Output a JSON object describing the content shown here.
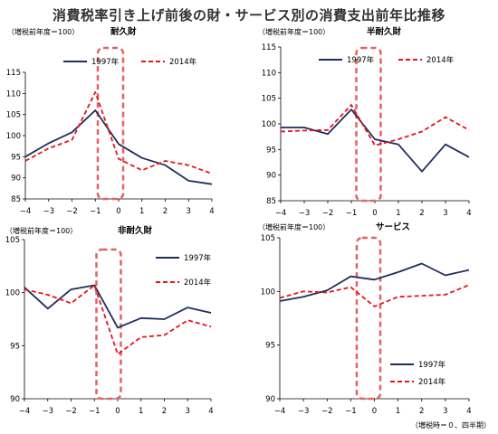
{
  "title": "消費税率引き上げ前後の財・サービス別の消費支出前年比推移",
  "footnote": "（増税時＝０、四半期）",
  "colors": {
    "s1997": "#1f2d5c",
    "s2014": "#e8141a",
    "highlight": "#e46262"
  },
  "chart_data": [
    {
      "type": "line",
      "title": "耐久財",
      "ylabel": "（増税前年度＝100）",
      "x": [
        -4,
        -3,
        -2,
        -1,
        0,
        1,
        2,
        3,
        4
      ],
      "xticklabels": [
        "−4",
        "−3",
        "−2",
        "−1",
        "0",
        "1",
        "2",
        "3",
        "4"
      ],
      "ylim": [
        85,
        115
      ],
      "yticks": [
        85,
        90,
        95,
        100,
        105,
        110,
        115
      ],
      "highlight_x": 0,
      "legend": "top",
      "series": [
        {
          "name": "1997年",
          "values": [
            95,
            98.2,
            100.8,
            106,
            98,
            94.7,
            93,
            89.3,
            88.5
          ]
        },
        {
          "name": "2014年",
          "values": [
            94,
            97,
            99,
            110.3,
            94.5,
            91.8,
            94,
            93,
            91
          ]
        }
      ]
    },
    {
      "type": "line",
      "title": "半耐久財",
      "ylabel": "（増税前年度＝100）",
      "x": [
        -4,
        -3,
        -2,
        -1,
        0,
        1,
        2,
        3,
        4
      ],
      "xticklabels": [
        "−4",
        "−3",
        "−2",
        "−1",
        "0",
        "1",
        "2",
        "3",
        "4"
      ],
      "ylim": [
        85,
        115
      ],
      "yticks": [
        85,
        90,
        95,
        100,
        105,
        110,
        115
      ],
      "highlight_x": 0,
      "legend": "top",
      "series": [
        {
          "name": "1997年",
          "values": [
            99.3,
            99.3,
            98,
            102.8,
            97,
            96,
            90.7,
            96,
            93.5
          ]
        },
        {
          "name": "2014年",
          "values": [
            98.5,
            98.7,
            98.8,
            103.7,
            95.8,
            97,
            98.5,
            101.3,
            98.8
          ]
        }
      ]
    },
    {
      "type": "line",
      "title": "非耐久財",
      "ylabel": "（増税前年度＝100）",
      "x": [
        -4,
        -3,
        -2,
        -1,
        0,
        1,
        2,
        3,
        4
      ],
      "xticklabels": [
        "−4",
        "−3",
        "−2",
        "−1",
        "0",
        "1",
        "2",
        "3",
        "4"
      ],
      "ylim": [
        90,
        105
      ],
      "yticks": [
        90,
        95,
        100,
        105
      ],
      "highlight_x": 0,
      "legend": "right",
      "series": [
        {
          "name": "1997年",
          "values": [
            100.5,
            98.5,
            100.3,
            100.7,
            96.7,
            97.6,
            97.5,
            98.6,
            98.1
          ]
        },
        {
          "name": "2014年",
          "values": [
            100.3,
            99.8,
            99,
            100.7,
            94.2,
            95.8,
            96,
            97.4,
            96.8
          ]
        }
      ]
    },
    {
      "type": "line",
      "title": "サービス",
      "ylabel": "（増税前年度＝100）",
      "x": [
        -4,
        -3,
        -2,
        -1,
        0,
        1,
        2,
        3,
        4
      ],
      "xticklabels": [
        "−4",
        "−3",
        "−2",
        "−1",
        "0",
        "1",
        "2",
        "3",
        "4"
      ],
      "ylim": [
        90,
        105
      ],
      "yticks": [
        90,
        95,
        100,
        105
      ],
      "highlight_x": 0,
      "legend": "bottom-right",
      "series": [
        {
          "name": "1997年",
          "values": [
            99.1,
            99.5,
            100.1,
            101.4,
            101.1,
            101.8,
            102.6,
            101.5,
            102
          ]
        },
        {
          "name": "2014年",
          "values": [
            99.4,
            100,
            99.9,
            100.4,
            98.6,
            99.5,
            99.6,
            99.7,
            100.6
          ]
        }
      ]
    }
  ]
}
